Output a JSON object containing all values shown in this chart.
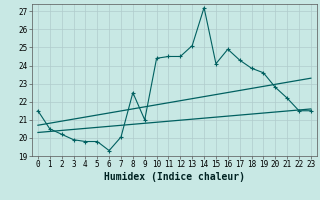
{
  "xlabel": "Humidex (Indice chaleur)",
  "background_color": "#c8e8e4",
  "grid_color": "#b0cccc",
  "line_color": "#006060",
  "xlim": [
    -0.5,
    23.5
  ],
  "ylim": [
    19,
    27.4
  ],
  "xticks": [
    0,
    1,
    2,
    3,
    4,
    5,
    6,
    7,
    8,
    9,
    10,
    11,
    12,
    13,
    14,
    15,
    16,
    17,
    18,
    19,
    20,
    21,
    22,
    23
  ],
  "yticks": [
    19,
    20,
    21,
    22,
    23,
    24,
    25,
    26,
    27
  ],
  "series1_x": [
    0,
    1,
    2,
    3,
    4,
    5,
    6,
    7,
    8,
    9,
    10,
    11,
    12,
    13,
    14,
    15,
    16,
    17,
    18,
    19,
    20,
    21,
    22,
    23
  ],
  "series1_y": [
    21.5,
    20.5,
    20.2,
    19.9,
    19.8,
    19.8,
    19.3,
    20.05,
    22.5,
    21.0,
    24.4,
    24.5,
    24.5,
    25.1,
    27.2,
    24.1,
    24.9,
    24.3,
    23.85,
    23.6,
    22.8,
    22.2,
    21.5,
    21.5
  ],
  "series2_x": [
    0,
    23
  ],
  "series2_y": [
    20.3,
    21.6
  ],
  "series3_x": [
    0,
    23
  ],
  "series3_y": [
    20.7,
    23.3
  ],
  "tick_fontsize": 5.5,
  "xlabel_fontsize": 7
}
